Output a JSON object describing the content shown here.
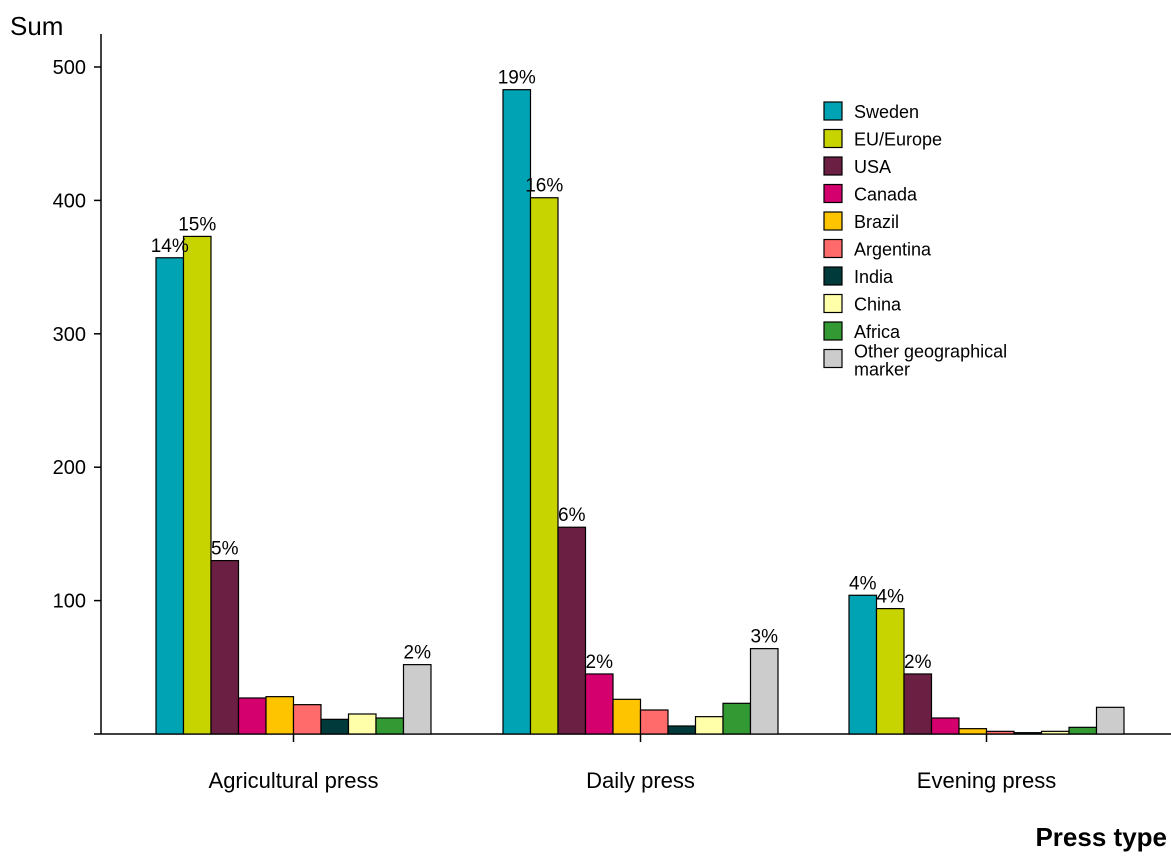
{
  "chart_data": {
    "type": "bar",
    "ylabel": "Sum",
    "xlabel": "Press type",
    "ylim": [
      0,
      500
    ],
    "yticks": [
      100,
      200,
      300,
      400,
      500
    ],
    "grid": false,
    "legend_position": "top-right",
    "categories": [
      "Agricultural press",
      "Daily press",
      "Evening press"
    ],
    "series": [
      {
        "name": "Sweden",
        "color": "#00a3b4",
        "values": [
          357,
          483,
          104
        ],
        "labels": [
          "14%",
          "19%",
          "4%"
        ]
      },
      {
        "name": "EU/Europe",
        "color": "#c8d400",
        "values": [
          373,
          402,
          94
        ],
        "labels": [
          "15%",
          "16%",
          "4%"
        ]
      },
      {
        "name": "USA",
        "color": "#6b1f42",
        "values": [
          130,
          155,
          45
        ],
        "labels": [
          "5%",
          "6%",
          "2%"
        ]
      },
      {
        "name": "Canada",
        "color": "#d4006e",
        "values": [
          27,
          45,
          12
        ],
        "labels": [
          "",
          "2%",
          ""
        ]
      },
      {
        "name": "Brazil",
        "color": "#ffc400",
        "values": [
          28,
          26,
          4
        ],
        "labels": [
          "",
          "",
          ""
        ]
      },
      {
        "name": "Argentina",
        "color": "#ff6b6b",
        "values": [
          22,
          18,
          2
        ],
        "labels": [
          "",
          "",
          ""
        ]
      },
      {
        "name": "India",
        "color": "#003a3a",
        "values": [
          11,
          6,
          1
        ],
        "labels": [
          "",
          "",
          ""
        ]
      },
      {
        "name": "China",
        "color": "#ffffaa",
        "values": [
          15,
          13,
          2
        ],
        "labels": [
          "",
          "",
          ""
        ]
      },
      {
        "name": "Africa",
        "color": "#339933",
        "values": [
          12,
          23,
          5
        ],
        "labels": [
          "",
          "",
          ""
        ]
      },
      {
        "name": "Other geographical marker",
        "color": "#cccccc",
        "values": [
          52,
          64,
          20
        ],
        "labels": [
          "2%",
          "3%",
          ""
        ]
      }
    ]
  }
}
